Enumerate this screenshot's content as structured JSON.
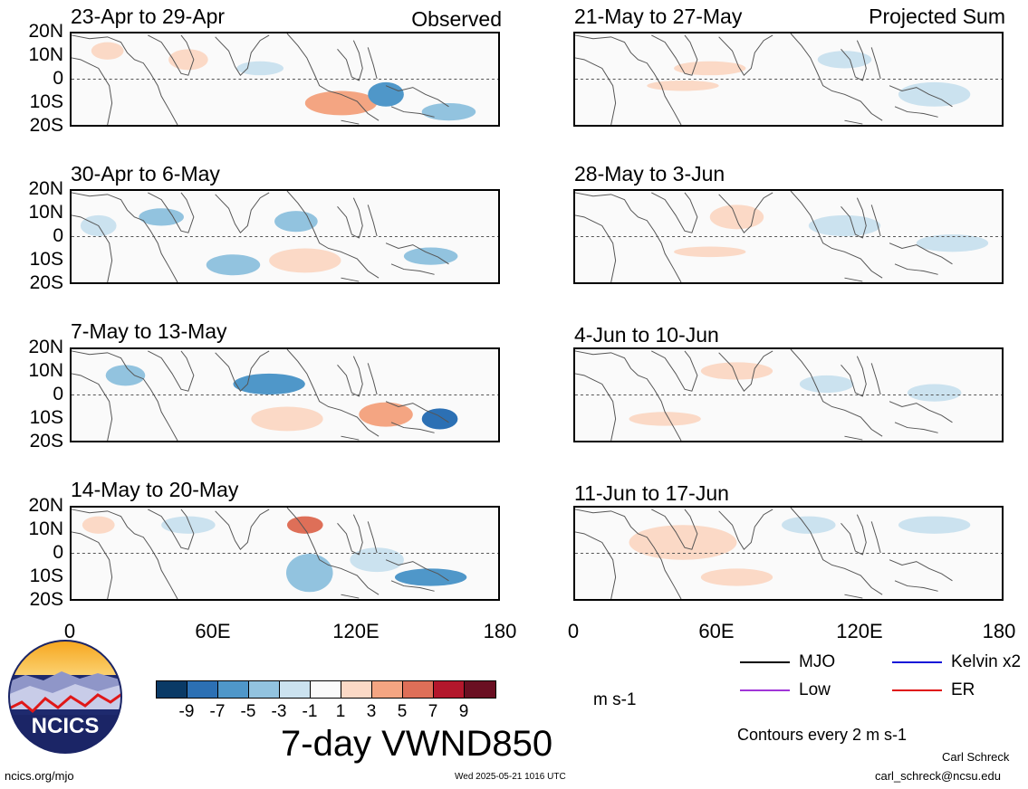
{
  "panels": [
    {
      "title": "23-Apr to 29-Apr",
      "label": "Observed"
    },
    {
      "title": "30-Apr to 6-May",
      "label": ""
    },
    {
      "title": "7-May to 13-May",
      "label": ""
    },
    {
      "title": "14-May to 20-May",
      "label": ""
    },
    {
      "title": "21-May to 27-May",
      "label": "Projected Sum"
    },
    {
      "title": "28-May to 3-Jun",
      "label": ""
    },
    {
      "title": "4-Jun to 10-Jun",
      "label": ""
    },
    {
      "title": "11-Jun to 17-Jun",
      "label": ""
    }
  ],
  "lat_labels": [
    "20N",
    "10N",
    "0",
    "10S",
    "20S"
  ],
  "lon_labels": [
    "0",
    "60E",
    "120E",
    "180"
  ],
  "colorbar": {
    "colors": [
      "#0a3a66",
      "#2c70b4",
      "#4f97c9",
      "#92c3df",
      "#cbe2ef",
      "#fafafa",
      "#fbd9c6",
      "#f4a582",
      "#de6f58",
      "#b3172c",
      "#6a0f22"
    ],
    "ticks": [
      "-9",
      "-7",
      "-5",
      "-3",
      "-1",
      "1",
      "3",
      "5",
      "7",
      "9"
    ],
    "unit": "m s-1"
  },
  "title": "7-day VWND850",
  "legend": {
    "items": [
      {
        "label": "MJO",
        "color": "#000000"
      },
      {
        "label": "Kelvin x2",
        "color": "#1515d8"
      },
      {
        "label": "Low",
        "color": "#a035d8"
      },
      {
        "label": "ER",
        "color": "#e01010"
      }
    ],
    "note": "Contours every 2 m s-1"
  },
  "logo": {
    "text": "NCICS"
  },
  "footer": {
    "site": "ncics.org/mjo",
    "timestamp": "Wed 2025-05-21 1016 UTC",
    "author": "Carl Schreck",
    "email": "carl_schreck@ncsu.edu"
  }
}
